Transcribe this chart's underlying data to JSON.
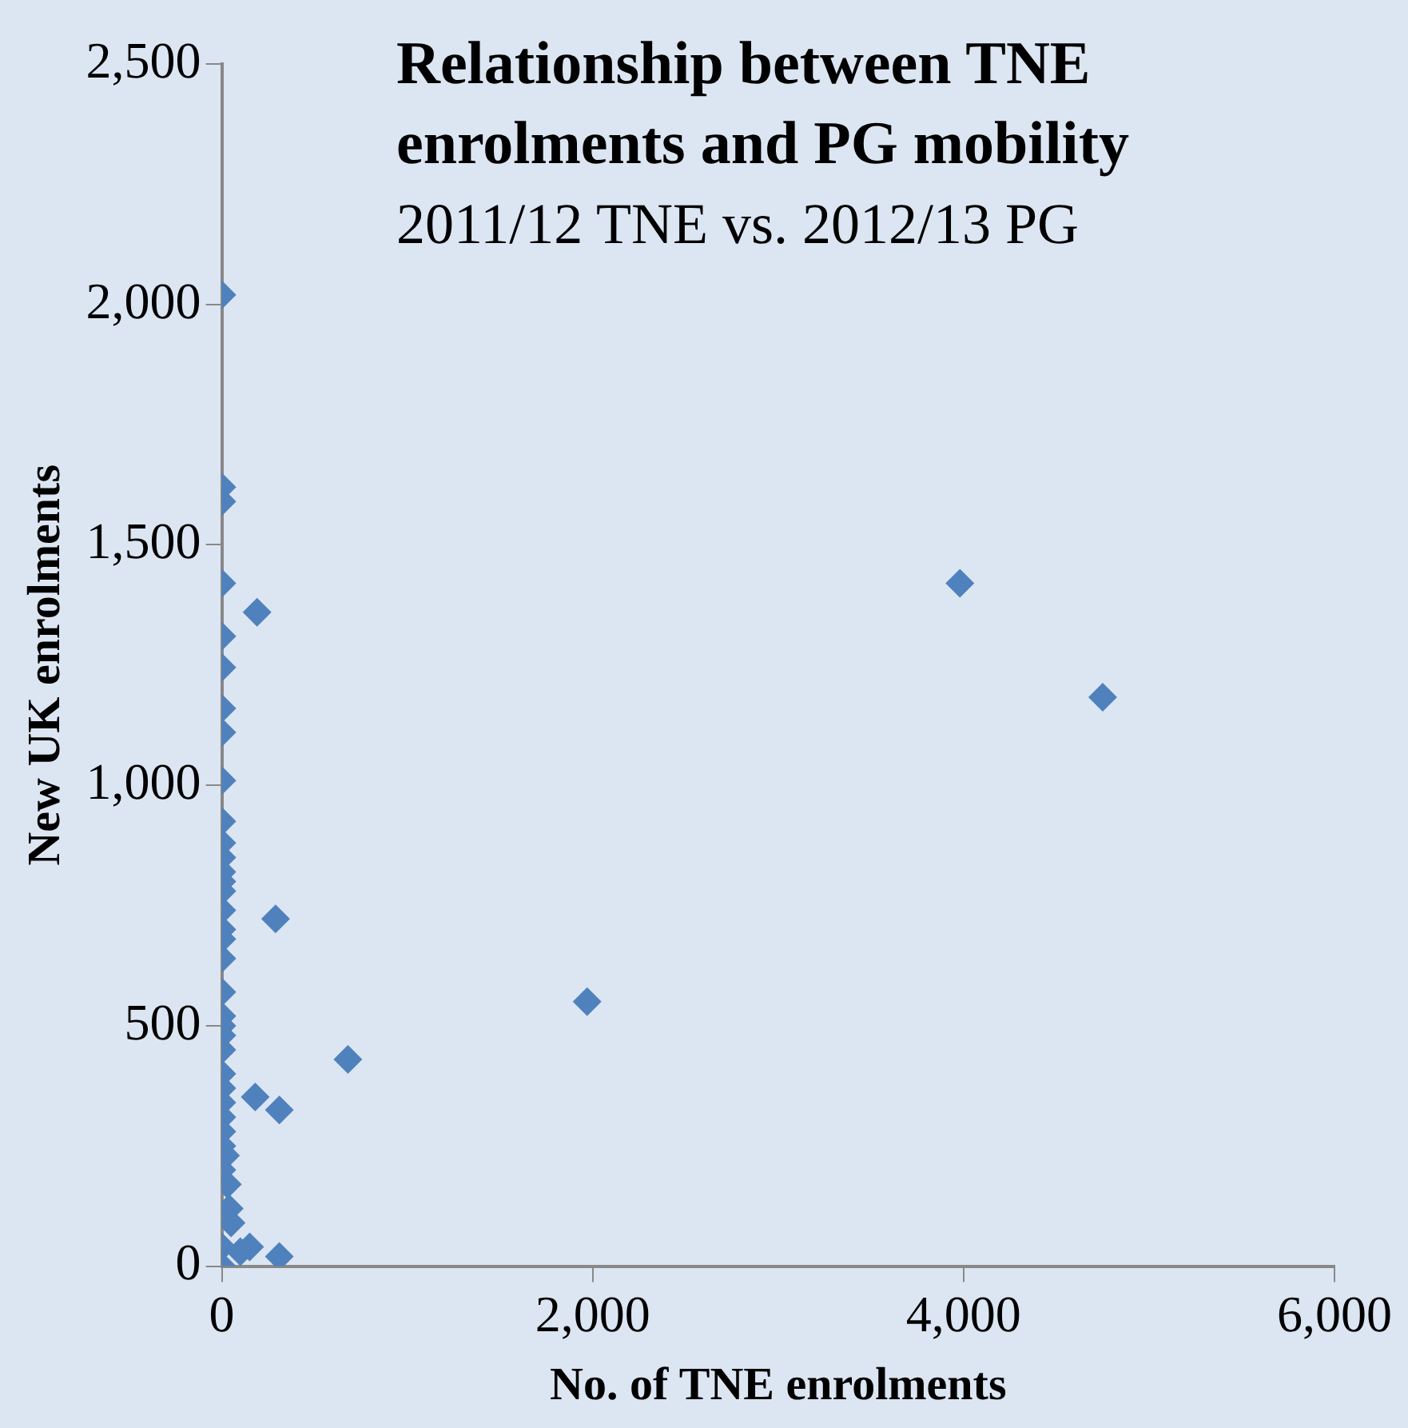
{
  "chart_data": {
    "type": "scatter",
    "title": "Relationship between TNE enrolments and PG mobility",
    "subtitle": "2011/12 TNE vs. 2012/13 PG",
    "xlabel": "No. of TNE enrolments",
    "ylabel": "New UK enrolments",
    "marker": "diamond",
    "xlim": [
      0,
      6000
    ],
    "xticks": [
      {
        "value": 0,
        "label": "0"
      },
      {
        "value": 2000,
        "label": "2,000"
      },
      {
        "value": 4000,
        "label": "4,000"
      },
      {
        "value": 6000,
        "label": "6,000"
      }
    ],
    "ylim": [
      0,
      2500
    ],
    "yticks": [
      {
        "value": 0,
        "label": "0"
      },
      {
        "value": 500,
        "label": "500"
      },
      {
        "value": 1000,
        "label": "1,000"
      },
      {
        "value": 1500,
        "label": "1,500"
      },
      {
        "value": 2000,
        "label": "2,000"
      },
      {
        "value": 2500,
        "label": "2,500"
      }
    ],
    "series": [
      {
        "color": "#4f81bd",
        "x": [
          0,
          0,
          0,
          0,
          190,
          0,
          0,
          0,
          0,
          0,
          0,
          0,
          0,
          0,
          0,
          0,
          0,
          0,
          0,
          0,
          0,
          0,
          0,
          0,
          0,
          0,
          0,
          0,
          0,
          0,
          0,
          0,
          0,
          0,
          290,
          180,
          310,
          310,
          680,
          1970,
          3980,
          4750,
          30,
          40,
          100,
          150,
          20,
          50
        ],
        "values": [
          2020,
          1620,
          1590,
          1420,
          1360,
          1310,
          1245,
          1160,
          1110,
          1010,
          925,
          880,
          850,
          820,
          800,
          780,
          740,
          700,
          680,
          640,
          570,
          520,
          500,
          480,
          450,
          400,
          370,
          340,
          310,
          280,
          250,
          200,
          40,
          0,
          722,
          352,
          325,
          20,
          430,
          550,
          1420,
          1183,
          170,
          120,
          30,
          40,
          230,
          90
        ]
      }
    ]
  }
}
